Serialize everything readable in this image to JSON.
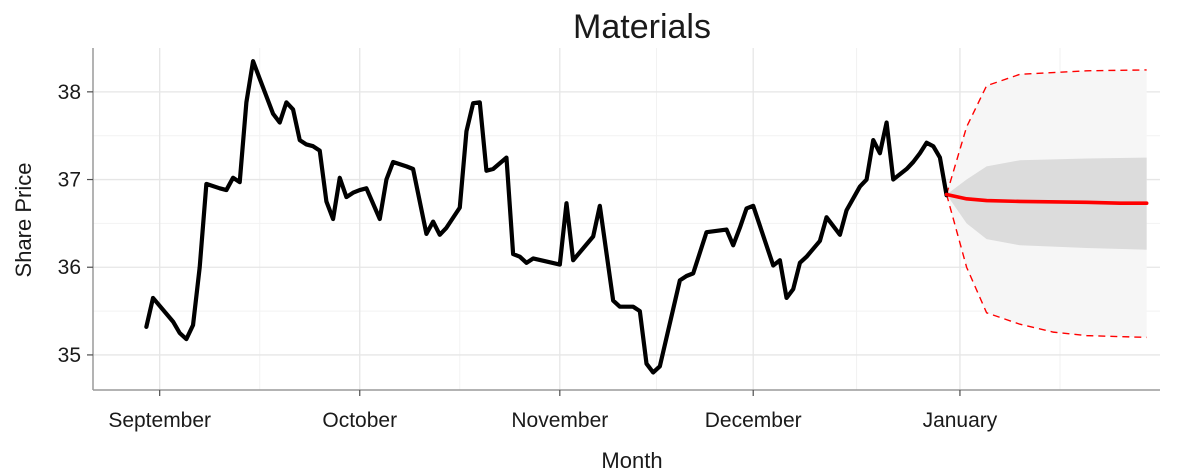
{
  "chart_data": {
    "type": "line",
    "title": "Materials",
    "xlabel": "Month",
    "ylabel": "Share Price",
    "x_ticks": [
      {
        "label": "September",
        "day": 1
      },
      {
        "label": "October",
        "day": 31
      },
      {
        "label": "November",
        "day": 61
      },
      {
        "label": "December",
        "day": 90
      },
      {
        "label": "January",
        "day": 121
      }
    ],
    "y_ticks": [
      35,
      36,
      37,
      38
    ],
    "xlim": [
      -9,
      151
    ],
    "ylim": [
      34.6,
      38.5
    ],
    "grid": true,
    "series": [
      {
        "color": "#000000",
        "points": [
          [
            -1,
            35.32
          ],
          [
            0,
            35.65
          ],
          [
            3,
            35.38
          ],
          [
            4,
            35.25
          ],
          [
            5,
            35.18
          ],
          [
            6,
            35.34
          ],
          [
            7,
            36.0
          ],
          [
            8,
            36.95
          ],
          [
            10,
            36.9
          ],
          [
            11,
            36.88
          ],
          [
            12,
            37.02
          ],
          [
            13,
            36.97
          ],
          [
            14,
            37.88
          ],
          [
            15,
            38.35
          ],
          [
            16,
            38.15
          ],
          [
            18,
            37.75
          ],
          [
            19,
            37.65
          ],
          [
            20,
            37.88
          ],
          [
            21,
            37.8
          ],
          [
            22,
            37.45
          ],
          [
            23,
            37.4
          ],
          [
            24,
            37.38
          ],
          [
            25,
            37.33
          ],
          [
            26,
            36.75
          ],
          [
            27,
            36.55
          ],
          [
            28,
            37.02
          ],
          [
            29,
            36.8
          ],
          [
            30,
            36.85
          ],
          [
            31,
            36.88
          ],
          [
            32,
            36.9
          ],
          [
            34,
            36.55
          ],
          [
            35,
            37.0
          ],
          [
            36,
            37.2
          ],
          [
            38,
            37.15
          ],
          [
            39,
            37.12
          ],
          [
            41,
            36.38
          ],
          [
            42,
            36.52
          ],
          [
            43,
            36.37
          ],
          [
            44,
            36.45
          ],
          [
            46,
            36.68
          ],
          [
            47,
            37.55
          ],
          [
            48,
            37.87
          ],
          [
            49,
            37.88
          ],
          [
            50,
            37.1
          ],
          [
            51,
            37.12
          ],
          [
            53,
            37.25
          ],
          [
            54,
            36.15
          ],
          [
            55,
            36.12
          ],
          [
            56,
            36.05
          ],
          [
            57,
            36.1
          ],
          [
            61,
            36.03
          ],
          [
            62,
            36.73
          ],
          [
            63,
            36.08
          ],
          [
            66,
            36.35
          ],
          [
            67,
            36.7
          ],
          [
            69,
            35.62
          ],
          [
            70,
            35.55
          ],
          [
            72,
            35.55
          ],
          [
            73,
            35.5
          ],
          [
            74,
            34.9
          ],
          [
            75,
            34.8
          ],
          [
            76,
            34.87
          ],
          [
            79,
            35.85
          ],
          [
            80,
            35.9
          ],
          [
            81,
            35.93
          ],
          [
            83,
            36.4
          ],
          [
            86,
            36.43
          ],
          [
            87,
            36.25
          ],
          [
            88,
            36.45
          ],
          [
            89,
            36.67
          ],
          [
            90,
            36.7
          ],
          [
            93,
            36.02
          ],
          [
            94,
            36.08
          ],
          [
            95,
            35.65
          ],
          [
            96,
            35.75
          ],
          [
            97,
            36.05
          ],
          [
            98,
            36.12
          ],
          [
            100,
            36.3
          ],
          [
            101,
            36.57
          ],
          [
            102,
            36.47
          ],
          [
            103,
            36.37
          ],
          [
            104,
            36.65
          ],
          [
            106,
            36.92
          ],
          [
            107,
            37.0
          ],
          [
            108,
            37.45
          ],
          [
            109,
            37.3
          ],
          [
            110,
            37.65
          ],
          [
            111,
            37.0
          ],
          [
            113,
            37.12
          ],
          [
            114,
            37.2
          ],
          [
            115,
            37.3
          ],
          [
            116,
            37.42
          ],
          [
            117,
            37.38
          ],
          [
            118,
            37.25
          ],
          [
            119,
            36.82
          ]
        ]
      },
      {
        "color": "#ff0000",
        "points": [
          [
            119,
            36.83
          ],
          [
            122,
            36.78
          ],
          [
            125,
            36.76
          ],
          [
            130,
            36.75
          ],
          [
            140,
            36.74
          ],
          [
            145,
            36.73
          ],
          [
            149,
            36.73
          ]
        ]
      }
    ],
    "forecast_bands": [
      {
        "level": "outer",
        "fill": "#f6f6f6",
        "upper": [
          [
            119,
            36.83
          ],
          [
            122,
            37.6
          ],
          [
            125,
            38.07
          ],
          [
            130,
            38.2
          ],
          [
            135,
            38.22
          ],
          [
            140,
            38.24
          ],
          [
            149,
            38.25
          ]
        ],
        "lower": [
          [
            119,
            36.83
          ],
          [
            122,
            36.0
          ],
          [
            125,
            35.48
          ],
          [
            130,
            35.35
          ],
          [
            135,
            35.26
          ],
          [
            140,
            35.22
          ],
          [
            149,
            35.2
          ]
        ]
      },
      {
        "level": "inner",
        "fill": "#dcdcdc",
        "upper": [
          [
            119,
            36.83
          ],
          [
            122,
            37.0
          ],
          [
            125,
            37.15
          ],
          [
            130,
            37.22
          ],
          [
            140,
            37.24
          ],
          [
            149,
            37.25
          ]
        ],
        "lower": [
          [
            119,
            36.83
          ],
          [
            122,
            36.5
          ],
          [
            125,
            36.32
          ],
          [
            130,
            36.25
          ],
          [
            140,
            36.22
          ],
          [
            149,
            36.2
          ]
        ]
      }
    ]
  }
}
